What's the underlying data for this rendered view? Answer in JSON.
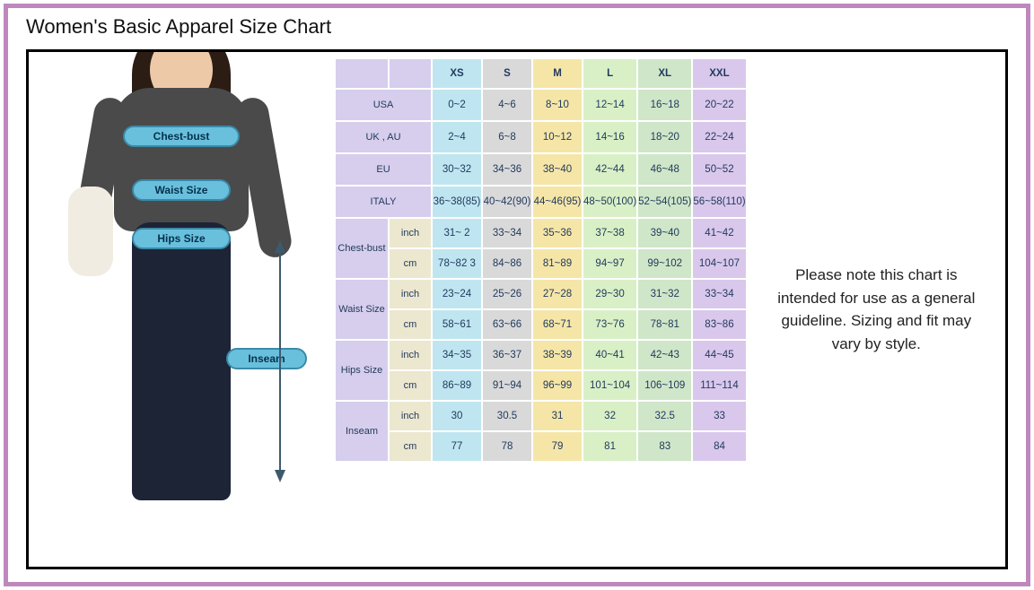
{
  "frame": {
    "purple": "#bf88bd"
  },
  "title": "Women's Basic Apparel Size Chart",
  "note": "Please note this chart is intended for use as a general guideline. Sizing and fit may vary by style.",
  "figure_labels": {
    "chest": "Chest-bust",
    "waist": "Waist Size",
    "hips": "Hips Size",
    "inseam": "Inseam"
  },
  "sizes": [
    "XS",
    "S",
    "M",
    "L",
    "XL",
    "XXL"
  ],
  "col_colors": [
    "#bfe6f0",
    "#d9d9d9",
    "#f5e6a8",
    "#d9f0c6",
    "#cfe6c8",
    "#d9c8ec"
  ],
  "label_bg": "#d6ceec",
  "label2_bg": "#ece7cf",
  "regions": [
    {
      "name": "USA",
      "vals": [
        "0~2",
        "4~6",
        "8~10",
        "12~14",
        "16~18",
        "20~22"
      ]
    },
    {
      "name": "UK , AU",
      "vals": [
        "2~4",
        "6~8",
        "10~12",
        "14~16",
        "18~20",
        "22~24"
      ]
    },
    {
      "name": "EU",
      "vals": [
        "30~32",
        "34~36",
        "38~40",
        "42~44",
        "46~48",
        "50~52"
      ]
    },
    {
      "name": "ITALY",
      "vals": [
        "36~38(85)",
        "40~42(90)",
        "44~46(95)",
        "48~50(100)",
        "52~54(105)",
        "56~58(110)"
      ]
    }
  ],
  "measurements": [
    {
      "name": "Chest-bust",
      "units": [
        {
          "u": "inch",
          "vals": [
            "31~ 2",
            "33~34",
            "35~36",
            "37~38",
            "39~40",
            "41~42"
          ]
        },
        {
          "u": "cm",
          "vals": [
            "78~82 3",
            "84~86",
            "81~89",
            "94~97",
            "99~102",
            "104~107"
          ]
        }
      ]
    },
    {
      "name": "Waist Size",
      "units": [
        {
          "u": "inch",
          "vals": [
            "23~24",
            "25~26",
            "27~28",
            "29~30",
            "31~32",
            "33~34"
          ]
        },
        {
          "u": "cm",
          "vals": [
            "58~61",
            "63~66",
            "68~71",
            "73~76",
            "78~81",
            "83~86"
          ]
        }
      ]
    },
    {
      "name": "Hips Size",
      "units": [
        {
          "u": "inch",
          "vals": [
            "34~35",
            "36~37",
            "38~39",
            "40~41",
            "42~43",
            "44~45"
          ]
        },
        {
          "u": "cm",
          "vals": [
            "86~89",
            "91~94",
            "96~99",
            "101~104",
            "106~109",
            "111~114"
          ]
        }
      ]
    },
    {
      "name": "Inseam",
      "units": [
        {
          "u": "inch",
          "vals": [
            "30",
            "30.5",
            "31",
            "32",
            "32.5",
            "33"
          ]
        },
        {
          "u": "cm",
          "vals": [
            "77",
            "78",
            "79",
            "81",
            "83",
            "84"
          ]
        }
      ]
    }
  ]
}
